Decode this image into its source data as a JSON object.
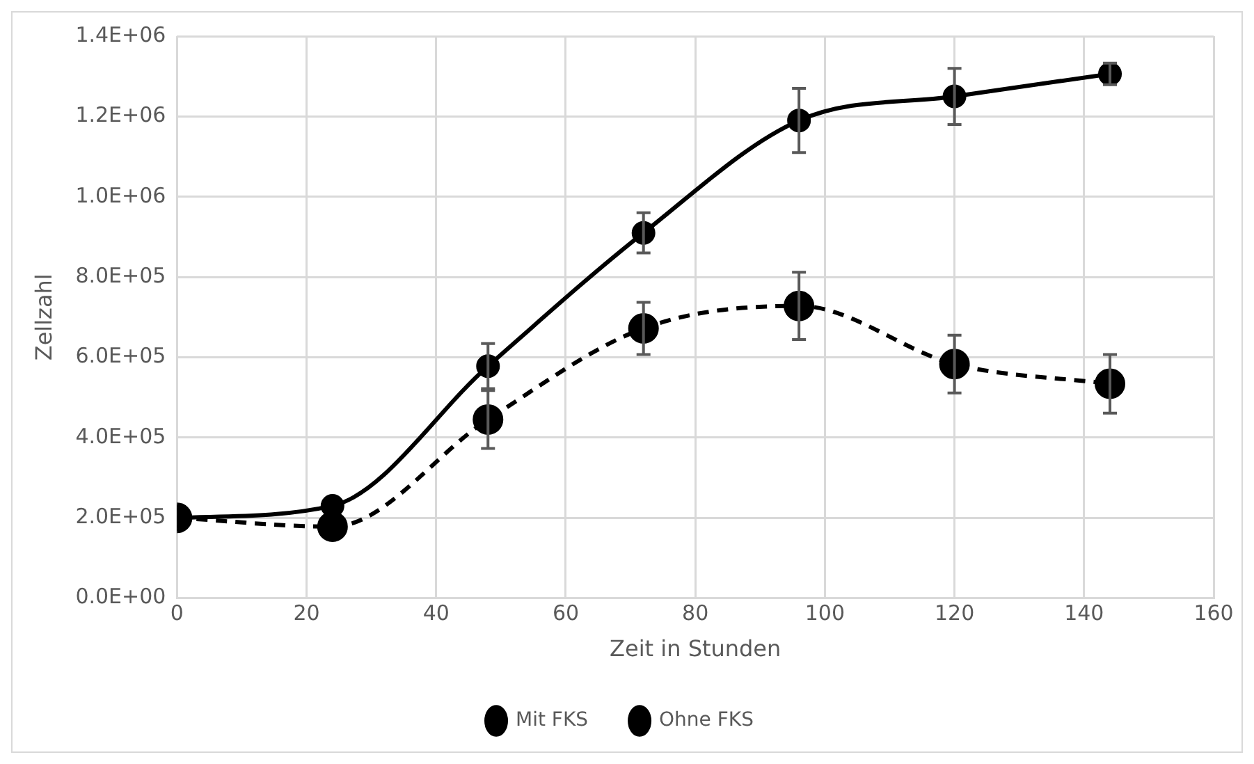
{
  "chart_data": {
    "type": "line",
    "xlabel": "Zeit in Stunden",
    "ylabel": "Zellzahl",
    "x": [
      0,
      24,
      48,
      72,
      96,
      120,
      144
    ],
    "series": [
      {
        "name": "Mit FKS",
        "color": "#000000",
        "line_style": "solid",
        "values": [
          200000,
          230000,
          578000,
          910000,
          1190000,
          1250000,
          1306000
        ],
        "errors": [
          null,
          null,
          56000,
          50000,
          80000,
          70000,
          27000
        ]
      },
      {
        "name": "Ohne FKS",
        "color": "#000000",
        "line_style": "dashed",
        "values": [
          200000,
          178000,
          445000,
          672000,
          728000,
          583000,
          534000
        ],
        "errors": [
          null,
          null,
          72000,
          65000,
          84000,
          72000,
          73000
        ]
      }
    ],
    "xlim": [
      0,
      160
    ],
    "xticks": [
      0,
      20,
      40,
      60,
      80,
      100,
      120,
      140,
      160
    ],
    "ylim": [
      0,
      1400000
    ],
    "yticks": [
      {
        "value": 0,
        "label": "0.0E+00"
      },
      {
        "value": 200000,
        "label": "2.0E+05"
      },
      {
        "value": 400000,
        "label": "4.0E+05"
      },
      {
        "value": 600000,
        "label": "6.0E+05"
      },
      {
        "value": 800000,
        "label": "8.0E+05"
      },
      {
        "value": 1000000,
        "label": "1.0E+06"
      },
      {
        "value": 1200000,
        "label": "1.2E+06"
      },
      {
        "value": 1400000,
        "label": "1.4E+06"
      }
    ],
    "grid": true,
    "legend": "bottom",
    "marker": "circle"
  }
}
